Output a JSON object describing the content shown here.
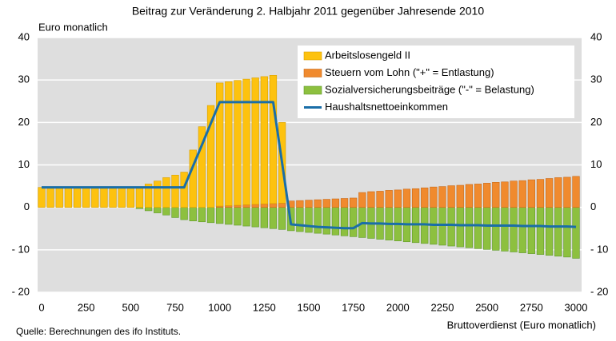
{
  "chart_data": {
    "type": "bar",
    "title": "Beitrag zur Veränderung 2. Halbjahr 2011 gegenüber Jahresende 2010",
    "y_label": "Euro monatlich",
    "x_label": "Bruttoverdienst (Euro monatlich)",
    "source": "Quelle: Berechnungen des ifo Instituts.",
    "x": [
      0,
      50,
      100,
      150,
      200,
      250,
      300,
      350,
      400,
      450,
      500,
      550,
      600,
      650,
      700,
      750,
      800,
      850,
      900,
      950,
      1000,
      1050,
      1100,
      1150,
      1200,
      1250,
      1300,
      1350,
      1400,
      1450,
      1500,
      1550,
      1600,
      1650,
      1700,
      1750,
      1800,
      1850,
      1900,
      1950,
      2000,
      2050,
      2100,
      2150,
      2200,
      2250,
      2300,
      2350,
      2400,
      2450,
      2500,
      2550,
      2600,
      2650,
      2700,
      2750,
      2800,
      2850,
      2900,
      2950,
      3000
    ],
    "xlim": [
      0,
      3000
    ],
    "xticks": [
      0,
      250,
      500,
      750,
      1000,
      1250,
      1500,
      1750,
      2000,
      2250,
      2500,
      2750,
      3000
    ],
    "ylim": [
      -20,
      40
    ],
    "yticks": [
      40,
      30,
      20,
      10,
      0,
      {
        "value": -10,
        "label": "- 10"
      },
      {
        "value": -20,
        "label": "- 20"
      }
    ],
    "y2lim": [
      -20,
      40
    ],
    "y2ticks": [
      40,
      30,
      20,
      10,
      0,
      {
        "value": -10,
        "label": "- 10"
      },
      {
        "value": -20,
        "label": "- 20"
      }
    ],
    "grid": true,
    "legend": "top-right",
    "series": [
      {
        "name": "Arbeitslosengeld II",
        "type": "bar",
        "color": "#fdc20f",
        "values": [
          4.7,
          4.7,
          4.7,
          4.7,
          4.7,
          4.7,
          4.7,
          4.7,
          4.7,
          4.7,
          4.7,
          4.7,
          5.5,
          6.2,
          7,
          7.6,
          8.3,
          13.5,
          19,
          24,
          29,
          29.2,
          29.4,
          29.6,
          29.8,
          30,
          30.2,
          19,
          0,
          0,
          0,
          0,
          0,
          0,
          0,
          0,
          0,
          0,
          0,
          0,
          0,
          0,
          0,
          0,
          0,
          0,
          0,
          0,
          0,
          0,
          0,
          0,
          0,
          0,
          0,
          0,
          0,
          0,
          0,
          0,
          0
        ]
      },
      {
        "name": "Steuern vom Lohn (\"+\" = Entlastung)",
        "type": "bar",
        "color": "#f08a2e",
        "values": [
          0,
          0,
          0,
          0,
          0,
          0,
          0,
          0,
          0,
          0,
          0,
          0,
          0,
          0,
          0,
          0,
          0,
          0,
          0,
          0,
          0.3,
          0.4,
          0.5,
          0.6,
          0.7,
          0.8,
          0.9,
          1.0,
          1.5,
          1.6,
          1.7,
          1.8,
          1.9,
          2.0,
          2.1,
          2.2,
          3.5,
          3.7,
          3.8,
          4.0,
          4.1,
          4.3,
          4.4,
          4.6,
          4.8,
          4.9,
          5.1,
          5.2,
          5.4,
          5.5,
          5.7,
          5.9,
          6.0,
          6.2,
          6.3,
          6.5,
          6.6,
          6.8,
          7.0,
          7.1,
          7.3
        ]
      },
      {
        "name": "Sozialversicherungsbeiträge (\"-\" = Belastung)",
        "type": "bar",
        "color": "#8dc03f",
        "values": [
          0,
          0,
          0,
          0,
          0,
          0,
          0,
          0,
          0,
          0,
          0,
          -0.3,
          -0.8,
          -1.3,
          -1.8,
          -2.4,
          -2.9,
          -3.2,
          -3.4,
          -3.6,
          -3.8,
          -4.0,
          -4.2,
          -4.4,
          -4.6,
          -4.8,
          -5.0,
          -5.2,
          -5.5,
          -5.7,
          -5.9,
          -6.1,
          -6.3,
          -6.5,
          -6.7,
          -6.9,
          -7.1,
          -7.3,
          -7.5,
          -7.7,
          -7.9,
          -8.1,
          -8.3,
          -8.5,
          -8.7,
          -8.9,
          -9.1,
          -9.3,
          -9.5,
          -9.7,
          -9.9,
          -10.1,
          -10.3,
          -10.5,
          -10.7,
          -10.9,
          -11.1,
          -11.3,
          -11.5,
          -11.7,
          -12.0
        ]
      },
      {
        "name": "Haushaltsnettoeinkommen",
        "type": "line",
        "color": "#1a6ea8",
        "values": [
          4.7,
          4.7,
          4.7,
          4.7,
          4.7,
          4.7,
          4.7,
          4.7,
          4.7,
          4.7,
          4.7,
          4.7,
          4.7,
          4.7,
          4.7,
          4.7,
          4.7,
          9.7,
          14.7,
          19.8,
          24.8,
          24.8,
          24.8,
          24.8,
          24.8,
          24.8,
          24.8,
          10.5,
          -4.0,
          -4.2,
          -4.4,
          -4.6,
          -4.7,
          -4.8,
          -4.9,
          -4.9,
          -3.7,
          -3.8,
          -3.8,
          -3.9,
          -3.9,
          -4.0,
          -4.0,
          -4.0,
          -4.1,
          -4.1,
          -4.1,
          -4.2,
          -4.2,
          -4.2,
          -4.3,
          -4.3,
          -4.3,
          -4.3,
          -4.4,
          -4.4,
          -4.4,
          -4.5,
          -4.5,
          -4.5,
          -4.6
        ]
      }
    ]
  }
}
